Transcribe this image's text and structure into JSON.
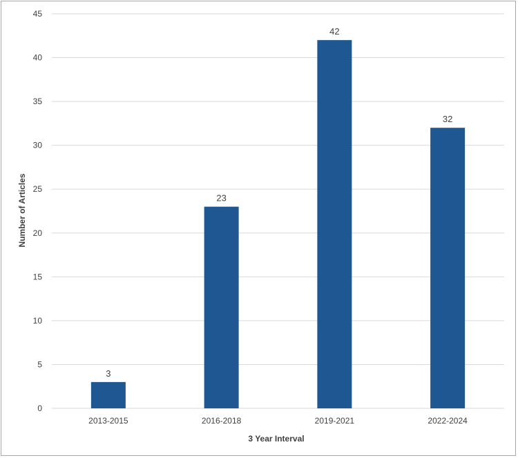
{
  "chart_data": {
    "type": "bar",
    "title": "",
    "xlabel": "3 Year Interval",
    "ylabel": "Number of Articles",
    "categories": [
      "2013-2015",
      "2016-2018",
      "2019-2021",
      "2022-2024"
    ],
    "values": [
      3,
      23,
      42,
      32
    ],
    "ylim": [
      0,
      45
    ],
    "yticks": [
      0,
      5,
      10,
      15,
      20,
      25,
      30,
      35,
      40,
      45
    ],
    "grid": true,
    "bar_color": "#1f5793",
    "data_labels": true
  }
}
